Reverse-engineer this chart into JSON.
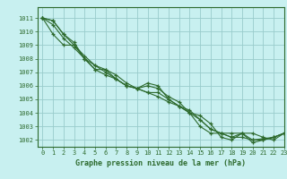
{
  "title": "Graphe pression niveau de la mer (hPa)",
  "bg_color": "#c8f0f0",
  "grid_color": "#99cccc",
  "line_color": "#2d6a2d",
  "xlim": [
    -0.5,
    23
  ],
  "ylim": [
    1001.5,
    1011.8
  ],
  "yticks": [
    1002,
    1003,
    1004,
    1005,
    1006,
    1007,
    1008,
    1009,
    1010,
    1011
  ],
  "xticks": [
    0,
    1,
    2,
    3,
    4,
    5,
    6,
    7,
    8,
    9,
    10,
    11,
    12,
    13,
    14,
    15,
    16,
    17,
    18,
    19,
    20,
    21,
    22,
    23
  ],
  "series": [
    [
      1011.0,
      1009.8,
      1009.0,
      1009.0,
      1008.0,
      1007.2,
      1007.2,
      1006.5,
      1006.0,
      1005.8,
      1006.2,
      1006.0,
      1005.0,
      1004.5,
      1004.0,
      1003.0,
      1002.5,
      1002.5,
      1002.5,
      1002.5,
      1001.8,
      1002.0,
      1002.2,
      1002.5
    ],
    [
      1011.0,
      1010.8,
      1009.8,
      1009.2,
      1008.0,
      1007.5,
      1007.0,
      1006.5,
      1006.0,
      1005.8,
      1006.0,
      1005.8,
      1005.2,
      1004.8,
      1004.0,
      1003.5,
      1002.8,
      1002.5,
      1002.2,
      1002.2,
      1002.0,
      1002.1,
      1002.2,
      1002.5
    ],
    [
      1011.0,
      1010.8,
      1009.8,
      1009.0,
      1008.2,
      1007.5,
      1007.2,
      1006.8,
      1006.2,
      1005.8,
      1005.5,
      1005.5,
      1005.0,
      1004.5,
      1004.2,
      1003.5,
      1002.8,
      1002.5,
      1002.2,
      1002.5,
      1002.0,
      1002.0,
      1002.2,
      1002.5
    ],
    [
      1011.0,
      1010.5,
      1009.5,
      1008.8,
      1008.0,
      1007.2,
      1006.8,
      1006.5,
      1006.0,
      1005.8,
      1005.5,
      1005.2,
      1004.8,
      1004.5,
      1004.0,
      1003.8,
      1003.2,
      1002.2,
      1002.0,
      1002.5,
      1002.5,
      1002.2,
      1002.0,
      1002.5
    ]
  ],
  "title_fontsize": 6,
  "tick_fontsize": 5
}
